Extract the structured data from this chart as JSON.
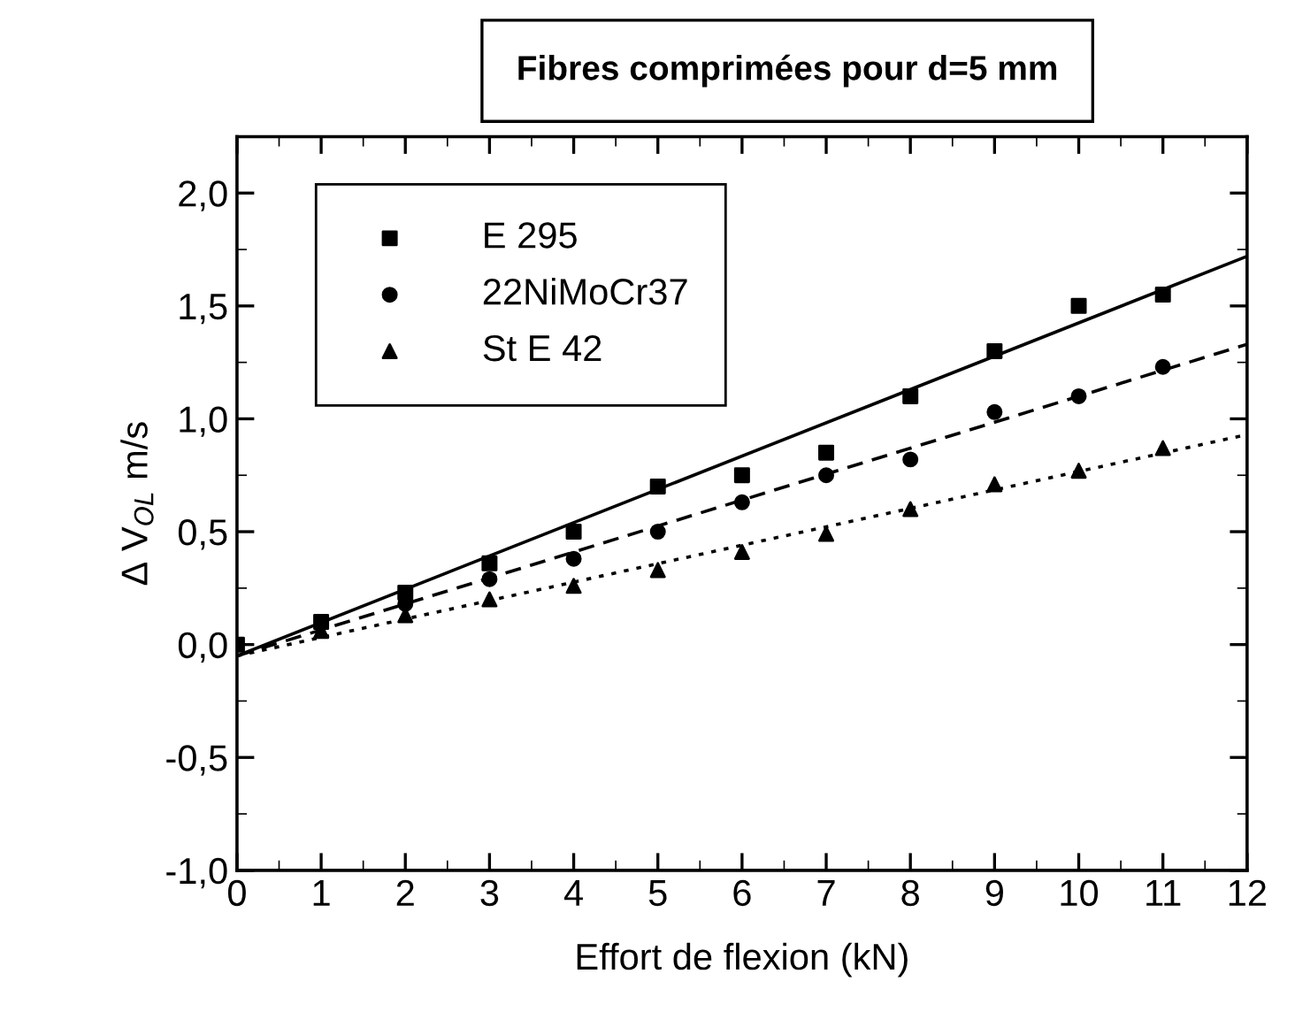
{
  "chart_data": {
    "type": "scatter",
    "title": "Fibres comprimées pour d=5 mm",
    "xlabel": "Effort de flexion (kN)",
    "ylabel": "Δ V$_{OL}$ m/s",
    "xlim": [
      0,
      12
    ],
    "xticks": [
      0,
      1,
      2,
      3,
      4,
      5,
      6,
      7,
      8,
      9,
      10,
      11,
      12
    ],
    "ylim": [
      -1.0,
      2.25
    ],
    "yticks": [
      {
        "value": -1.0,
        "label": "-1,0"
      },
      {
        "value": -0.5,
        "label": "-0,5"
      },
      {
        "value": 0.0,
        "label": "0,0"
      },
      {
        "value": 0.5,
        "label": "0,5"
      },
      {
        "value": 1.0,
        "label": "1,0"
      },
      {
        "value": 1.5,
        "label": "1,5"
      },
      {
        "value": 2.0,
        "label": "2,0"
      }
    ],
    "legend": "top left",
    "grid": false,
    "series": [
      {
        "name": "E 295",
        "marker": "square",
        "color": "#000000",
        "x": [
          0,
          1,
          2,
          3,
          4,
          5,
          6,
          7,
          8,
          9,
          10,
          11
        ],
        "values": [
          0.0,
          0.1,
          0.23,
          0.36,
          0.5,
          0.7,
          0.75,
          0.85,
          1.1,
          1.3,
          1.5,
          1.55
        ]
      },
      {
        "name": "22NiMoCr37",
        "marker": "circle",
        "color": "#000000",
        "x": [
          2,
          3,
          4,
          5,
          6,
          7,
          8,
          9,
          10,
          11
        ],
        "values": [
          0.18,
          0.29,
          0.38,
          0.5,
          0.63,
          0.75,
          0.82,
          1.03,
          1.1,
          1.23
        ]
      },
      {
        "name": "St E 42",
        "marker": "triangle",
        "color": "#000000",
        "x": [
          1,
          2,
          3,
          4,
          5,
          6,
          7,
          8,
          9,
          10,
          11
        ],
        "values": [
          0.06,
          0.13,
          0.2,
          0.26,
          0.33,
          0.41,
          0.49,
          0.6,
          0.71,
          0.77,
          0.87
        ]
      },
      {
        "type": "line",
        "line_style": "solid",
        "color": "#000000",
        "x": [
          0,
          12
        ],
        "values": [
          -0.05,
          1.72
        ]
      },
      {
        "type": "line",
        "line_style": "dashed",
        "color": "#000000",
        "x": [
          0,
          12
        ],
        "values": [
          -0.05,
          1.33
        ]
      },
      {
        "type": "line",
        "line_style": "dotted",
        "color": "#000000",
        "x": [
          0,
          12
        ],
        "values": [
          -0.05,
          0.93
        ]
      }
    ]
  }
}
